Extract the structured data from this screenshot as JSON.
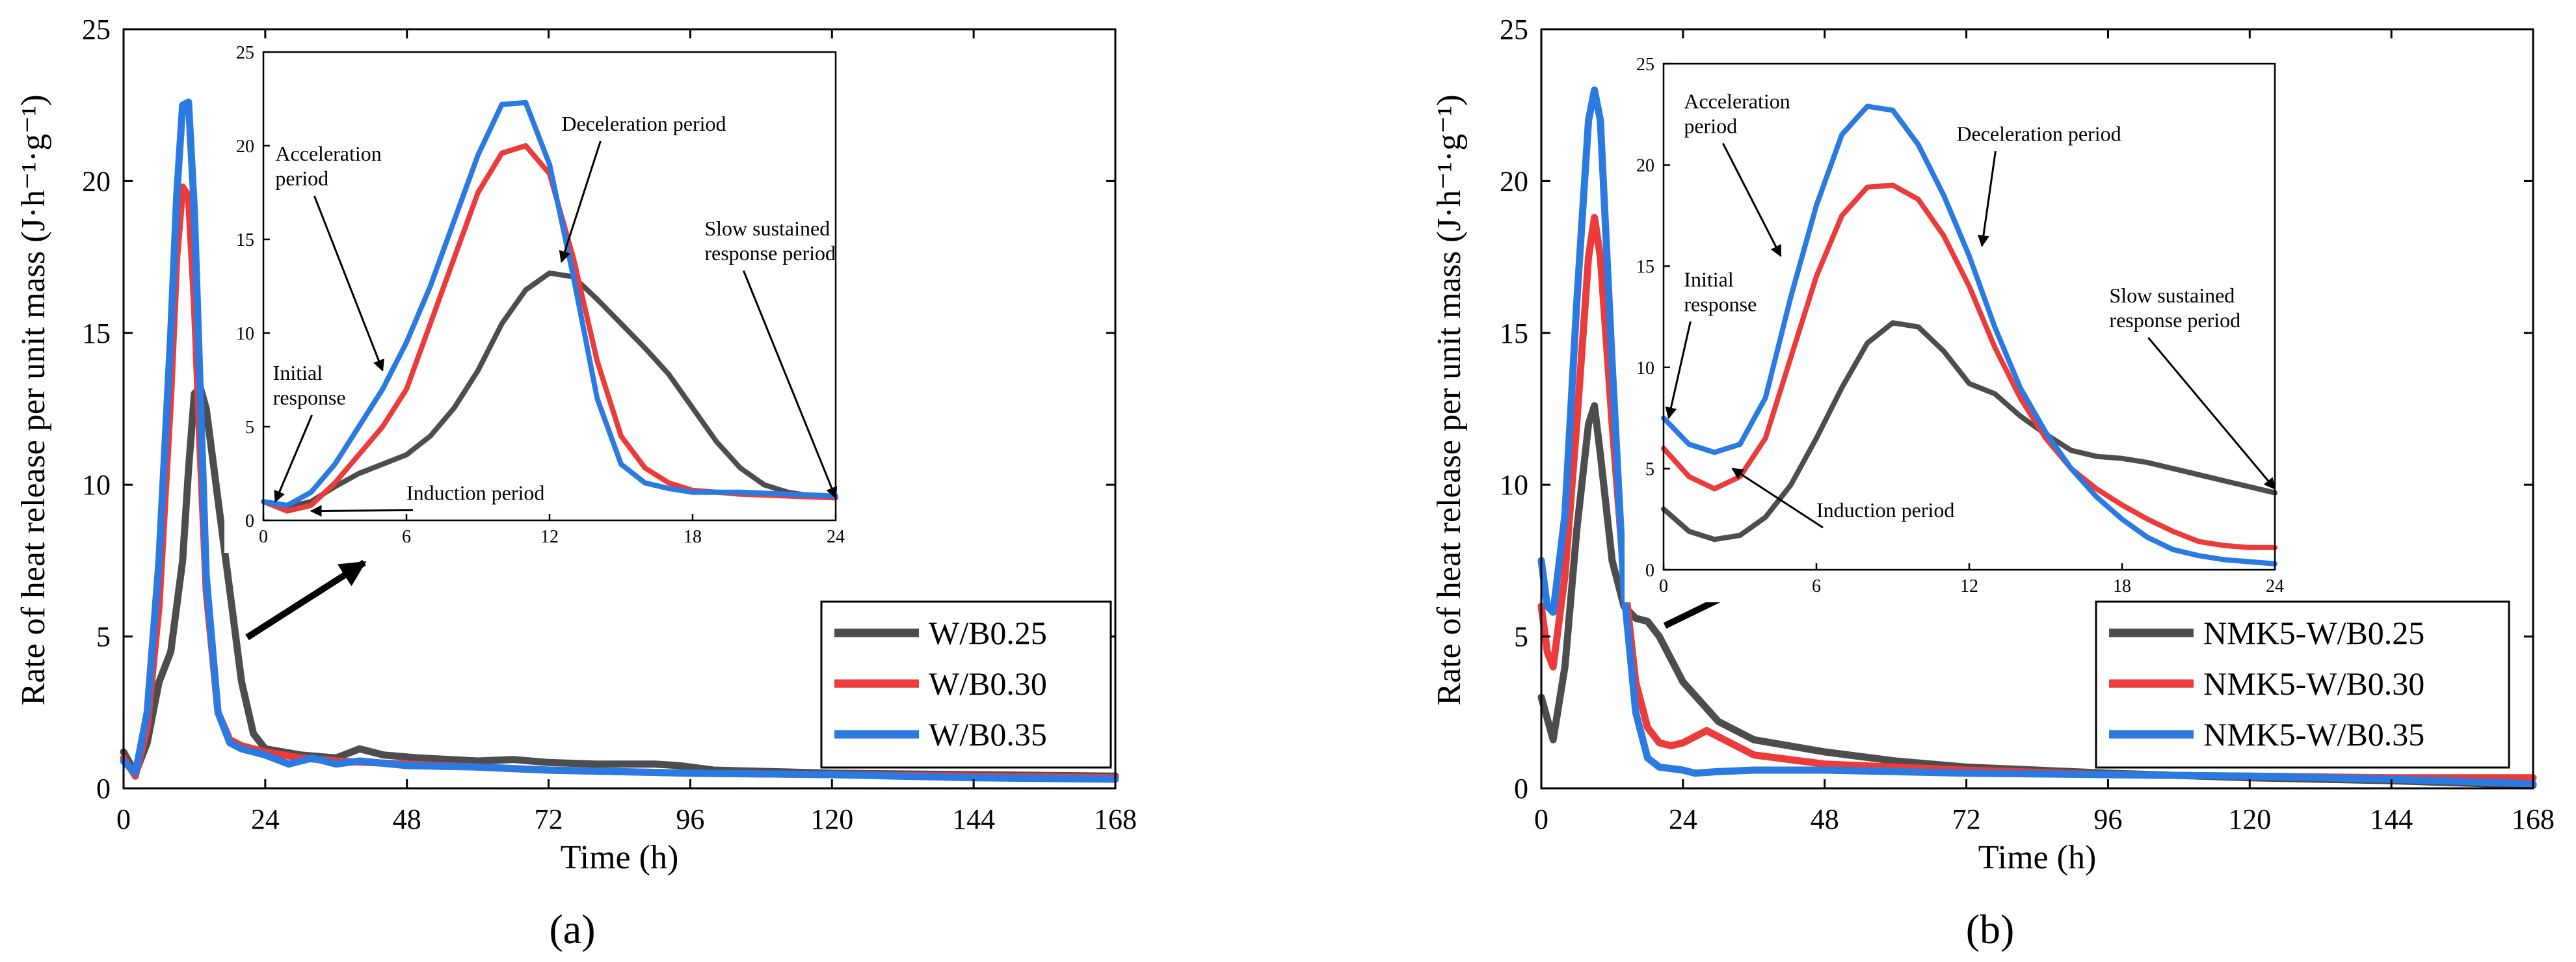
{
  "colors": {
    "W/B0.25": "#4d4d4d",
    "W/B0.30": "#ec3b3b",
    "W/B0.35": "#2a7ae2",
    "axis": "#000000"
  },
  "chart_data": [
    {
      "id": "a",
      "type": "line",
      "panel_label": "(a)",
      "xlabel": "Time (h)",
      "ylabel": "Rate of heat release per unit mass (J·h⁻¹·g⁻¹)",
      "xlim": [
        0,
        168
      ],
      "ylim": [
        0,
        25
      ],
      "xticks": [
        0,
        24,
        48,
        72,
        96,
        120,
        144,
        168
      ],
      "yticks": [
        0,
        5,
        10,
        15,
        20,
        25
      ],
      "legend_position": "bottom-right",
      "series": [
        {
          "name": "W/B0.25",
          "x": [
            0,
            2,
            4,
            6,
            8,
            10,
            11,
            12,
            13,
            14,
            15,
            16,
            18,
            20,
            22,
            24,
            30,
            36,
            40,
            44,
            50,
            60,
            66,
            72,
            80,
            90,
            94,
            100,
            120,
            144,
            168
          ],
          "y": [
            1.2,
            0.5,
            1.5,
            3.5,
            4.5,
            7.5,
            10.5,
            13.0,
            13.2,
            12.5,
            11.0,
            9.5,
            6.5,
            3.5,
            1.8,
            1.3,
            1.1,
            1.0,
            1.3,
            1.1,
            1.0,
            0.9,
            0.95,
            0.85,
            0.8,
            0.8,
            0.75,
            0.6,
            0.5,
            0.45,
            0.4
          ]
        },
        {
          "name": "W/B0.30",
          "x": [
            0,
            2,
            4,
            6,
            8,
            9,
            10,
            11,
            12,
            13,
            14,
            16,
            18,
            20,
            24,
            30,
            36,
            48,
            60,
            72,
            96,
            120,
            144,
            168
          ],
          "y": [
            1.0,
            0.4,
            2.0,
            6.0,
            13.0,
            17.5,
            19.8,
            19.5,
            16.0,
            11.0,
            6.5,
            2.5,
            1.6,
            1.4,
            1.2,
            1.0,
            0.9,
            0.8,
            0.7,
            0.6,
            0.5,
            0.45,
            0.4,
            0.35
          ]
        },
        {
          "name": "W/B0.35",
          "x": [
            0,
            2,
            4,
            6,
            8,
            9,
            10,
            11,
            12,
            13,
            14,
            16,
            18,
            20,
            24,
            28,
            32,
            36,
            40,
            48,
            60,
            72,
            96,
            120,
            144,
            168
          ],
          "y": [
            0.9,
            0.5,
            2.5,
            7.5,
            15.0,
            19.5,
            22.5,
            22.6,
            19.0,
            13.0,
            7.0,
            2.5,
            1.5,
            1.3,
            1.1,
            0.8,
            1.0,
            0.8,
            0.9,
            0.75,
            0.7,
            0.6,
            0.5,
            0.45,
            0.35,
            0.3
          ]
        }
      ],
      "inset": {
        "xlim": [
          0,
          24
        ],
        "ylim": [
          0,
          25
        ],
        "xticks": [
          0,
          6,
          12,
          18,
          24
        ],
        "yticks": [
          0,
          5,
          10,
          15,
          20,
          25
        ],
        "series": [
          {
            "name": "W/B0.25",
            "x": [
              0,
              1,
              2,
              3,
              4,
              5,
              6,
              7,
              8,
              9,
              10,
              11,
              12,
              13,
              14,
              15,
              16,
              17,
              18,
              19,
              20,
              21,
              22,
              23,
              24
            ],
            "y": [
              1.0,
              0.7,
              1.0,
              1.8,
              2.5,
              3.0,
              3.5,
              4.5,
              6.0,
              8.0,
              10.5,
              12.3,
              13.2,
              13.0,
              11.8,
              10.5,
              9.2,
              7.8,
              6.0,
              4.2,
              2.8,
              1.9,
              1.5,
              1.3,
              1.2
            ]
          },
          {
            "name": "W/B0.30",
            "x": [
              0,
              1,
              2,
              3,
              4,
              5,
              6,
              7,
              8,
              9,
              10,
              11,
              12,
              13,
              14,
              15,
              16,
              17,
              18,
              19,
              20,
              21,
              22,
              23,
              24
            ],
            "y": [
              1.0,
              0.5,
              0.8,
              2.0,
              3.5,
              5.0,
              7.0,
              10.5,
              14.0,
              17.5,
              19.6,
              20.0,
              18.5,
              14.0,
              8.5,
              4.5,
              2.8,
              2.0,
              1.6,
              1.5,
              1.4,
              1.35,
              1.3,
              1.25,
              1.2
            ]
          },
          {
            "name": "W/B0.35",
            "x": [
              0,
              1,
              2,
              3,
              4,
              5,
              6,
              7,
              8,
              9,
              10,
              11,
              12,
              13,
              14,
              15,
              16,
              17,
              18,
              19,
              20,
              21,
              22,
              23,
              24
            ],
            "y": [
              1.0,
              0.8,
              1.5,
              3.0,
              5.0,
              7.0,
              9.5,
              12.5,
              16.0,
              19.5,
              22.2,
              22.3,
              19.0,
              13.0,
              6.5,
              3.0,
              2.0,
              1.7,
              1.5,
              1.5,
              1.5,
              1.45,
              1.4,
              1.35,
              1.3
            ]
          }
        ],
        "annotations": [
          {
            "text": "Acceleration\nperiod",
            "x": 0.5,
            "y": 19.2,
            "arrow_to": [
              5,
              8
            ]
          },
          {
            "text": "Deceleration period",
            "x": 12.5,
            "y": 20.8,
            "arrow_to": [
              12.5,
              13.8
            ]
          },
          {
            "text": "Slow sustained\nresponse period",
            "x": 18.5,
            "y": 15.2,
            "arrow_to": [
              24,
              1.2
            ]
          },
          {
            "text": "Initial\nresponse",
            "x": 0.4,
            "y": 7.5,
            "arrow_to": [
              0.5,
              1.0
            ]
          },
          {
            "text": "Induction period",
            "x": 6.0,
            "y": 1.1,
            "arrow_to": [
              2.0,
              0.5
            ]
          }
        ]
      }
    },
    {
      "id": "b",
      "type": "line",
      "panel_label": "(b)",
      "xlabel": "Time (h)",
      "ylabel": "Rate of heat release per unit mass (J·h⁻¹·g⁻¹)",
      "xlim": [
        0,
        168
      ],
      "ylim": [
        0,
        25
      ],
      "xticks": [
        0,
        24,
        48,
        72,
        96,
        120,
        144,
        168
      ],
      "yticks": [
        0,
        5,
        10,
        15,
        20,
        25
      ],
      "legend_position": "bottom-right",
      "series": [
        {
          "name": "NMK5-W/B0.25",
          "x": [
            0,
            2,
            4,
            6,
            8,
            9,
            10,
            12,
            14,
            16,
            18,
            20,
            24,
            30,
            36,
            48,
            60,
            72,
            96,
            120,
            144,
            168
          ],
          "y": [
            3.0,
            1.6,
            4.0,
            8.5,
            12.0,
            12.6,
            11.0,
            7.5,
            6.0,
            5.6,
            5.5,
            5.0,
            3.5,
            2.2,
            1.6,
            1.2,
            0.9,
            0.7,
            0.5,
            0.35,
            0.25,
            0.1
          ]
        },
        {
          "name": "NMK5-W/B0.30",
          "x": [
            0,
            1,
            2,
            4,
            6,
            8,
            9,
            10,
            12,
            14,
            16,
            18,
            20,
            22,
            24,
            28,
            32,
            36,
            48,
            72,
            96,
            120,
            144,
            168
          ],
          "y": [
            6.0,
            4.5,
            4.0,
            7.0,
            12.0,
            17.5,
            18.8,
            17.5,
            12.0,
            7.0,
            3.5,
            2.0,
            1.5,
            1.4,
            1.5,
            1.9,
            1.5,
            1.1,
            0.8,
            0.6,
            0.45,
            0.4,
            0.35,
            0.35
          ]
        },
        {
          "name": "NMK5-W/B0.35",
          "x": [
            0,
            1,
            2,
            4,
            6,
            8,
            9,
            10,
            12,
            14,
            16,
            18,
            20,
            24,
            26,
            30,
            36,
            48,
            72,
            96,
            120,
            144,
            168
          ],
          "y": [
            7.5,
            6.0,
            5.8,
            9.0,
            16.0,
            22.0,
            23.0,
            22.0,
            14.0,
            6.5,
            2.5,
            1.0,
            0.7,
            0.6,
            0.5,
            0.55,
            0.6,
            0.6,
            0.5,
            0.45,
            0.4,
            0.3,
            0.15
          ]
        }
      ],
      "inset": {
        "xlim": [
          0,
          24
        ],
        "ylim": [
          0,
          25
        ],
        "xticks": [
          0,
          6,
          12,
          18,
          24
        ],
        "yticks": [
          0,
          5,
          10,
          15,
          20,
          25
        ],
        "series": [
          {
            "name": "NMK5-W/B0.25",
            "x": [
              0,
              1,
              2,
              3,
              4,
              5,
              6,
              7,
              8,
              9,
              10,
              11,
              12,
              13,
              14,
              15,
              16,
              17,
              18,
              19,
              20,
              21,
              22,
              23,
              24
            ],
            "y": [
              3.0,
              1.9,
              1.5,
              1.7,
              2.6,
              4.2,
              6.5,
              9.0,
              11.2,
              12.2,
              12.0,
              10.8,
              9.2,
              8.7,
              7.6,
              6.7,
              5.9,
              5.6,
              5.5,
              5.3,
              5.0,
              4.7,
              4.4,
              4.1,
              3.8
            ]
          },
          {
            "name": "NMK5-W/B0.30",
            "x": [
              0,
              1,
              2,
              3,
              4,
              5,
              6,
              7,
              8,
              9,
              10,
              11,
              12,
              13,
              14,
              15,
              16,
              17,
              18,
              19,
              20,
              21,
              22,
              23,
              24
            ],
            "y": [
              6.0,
              4.6,
              4.0,
              4.6,
              6.5,
              10.5,
              14.5,
              17.5,
              18.9,
              19.0,
              18.3,
              16.5,
              14.0,
              11.0,
              8.5,
              6.5,
              5.0,
              4.0,
              3.2,
              2.5,
              1.9,
              1.4,
              1.2,
              1.1,
              1.1
            ]
          },
          {
            "name": "NMK5-W/B0.35",
            "x": [
              0,
              1,
              2,
              3,
              4,
              5,
              6,
              7,
              8,
              9,
              10,
              11,
              12,
              13,
              14,
              15,
              16,
              17,
              18,
              19,
              20,
              21,
              22,
              23,
              24
            ],
            "y": [
              7.5,
              6.2,
              5.8,
              6.2,
              8.5,
              13.5,
              18.0,
              21.5,
              22.9,
              22.7,
              21.0,
              18.5,
              15.5,
              12.0,
              9.0,
              6.8,
              5.0,
              3.6,
              2.5,
              1.6,
              1.0,
              0.7,
              0.5,
              0.4,
              0.3
            ]
          }
        ],
        "annotations": [
          {
            "text": "Acceleration\nperiod",
            "x": 0.8,
            "y": 22.8,
            "arrow_to": [
              4.6,
              15.5
            ]
          },
          {
            "text": "Deceleration period",
            "x": 11.5,
            "y": 21.2,
            "arrow_to": [
              12.5,
              16
            ]
          },
          {
            "text": "Initial\nresponse",
            "x": 0.8,
            "y": 14.0,
            "arrow_to": [
              0.2,
              7.5
            ]
          },
          {
            "text": "Slow sustained\nresponse period",
            "x": 17.5,
            "y": 13.2,
            "arrow_to": [
              24,
              4.0
            ]
          },
          {
            "text": "Induction period",
            "x": 6.0,
            "y": 2.6,
            "arrow_to": [
              2.7,
              5.0
            ]
          }
        ]
      }
    }
  ]
}
